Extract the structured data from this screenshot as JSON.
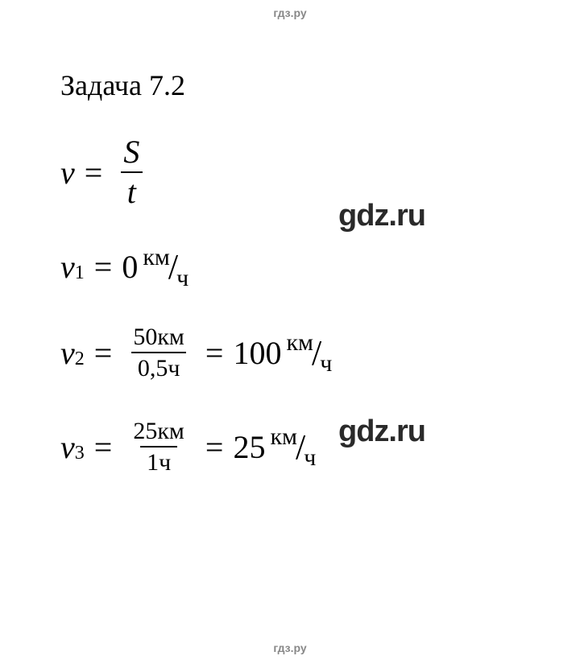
{
  "watermarks": {
    "header": "гдз.ру",
    "footer": "гдз.ру",
    "middle1": "gdz.ru",
    "middle2": "gdz.ru"
  },
  "title": "Задача 7.2",
  "equations": {
    "formula": {
      "lhs_var": "v",
      "rhs_top": "S",
      "rhs_bottom": "t"
    },
    "v1": {
      "var": "v",
      "sub": "1",
      "value": "0",
      "unit_top": "км",
      "unit_bottom": "ч"
    },
    "v2": {
      "var": "v",
      "sub": "2",
      "frac_top": "50км",
      "frac_bottom": "0,5ч",
      "result": "100",
      "unit_top": "км",
      "unit_bottom": "ч"
    },
    "v3": {
      "var": "v",
      "sub": "3",
      "frac_top": "25км",
      "frac_bottom": "1ч",
      "result": "25",
      "unit_top": "км",
      "unit_bottom": "ч"
    }
  },
  "style": {
    "background_color": "#ffffff",
    "text_color": "#000000",
    "watermark_color": "#888888",
    "title_fontsize": 36,
    "equation_fontsize": 40,
    "font_family": "Times New Roman"
  }
}
